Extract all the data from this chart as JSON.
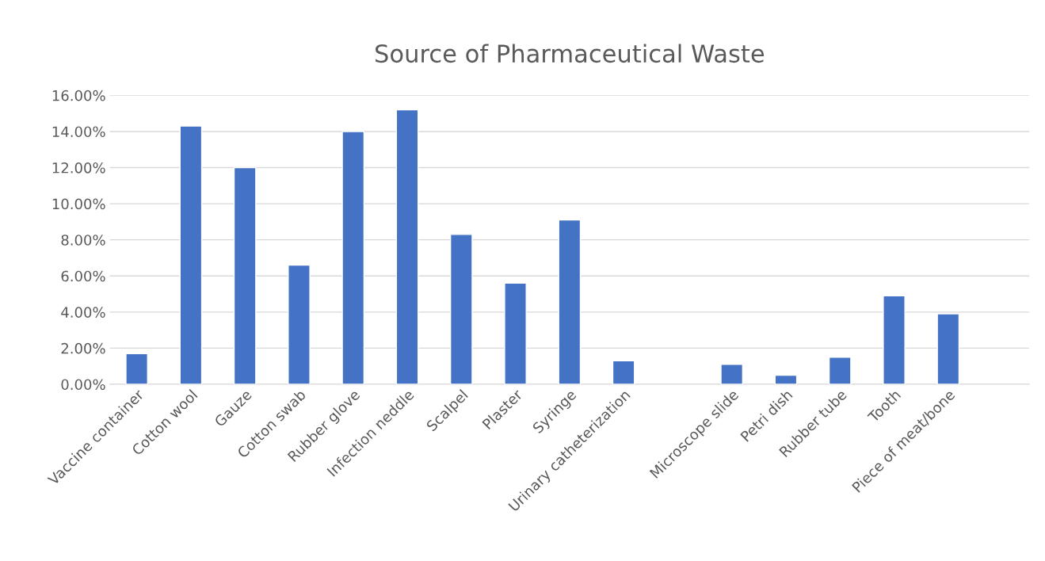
{
  "chart_data": {
    "type": "bar",
    "title": "Source of Pharmaceutical Waste",
    "categories": [
      "Vaccine container",
      "Cotton wool",
      "Gauze",
      "Cotton swab",
      "Rubber glove",
      "Infection neddle",
      "Scalpel",
      "Plaster",
      "Syringe",
      "Urinary catheterization",
      null,
      "Microscope slide",
      "Petri dish",
      "Rubber tube",
      "Tooth",
      "Piece of meat/bone",
      null
    ],
    "values": [
      1.7,
      14.3,
      12.0,
      6.6,
      14.0,
      15.2,
      8.3,
      5.6,
      9.1,
      1.3,
      null,
      1.1,
      0.5,
      1.5,
      4.9,
      3.9,
      null
    ],
    "color": "#4472c4",
    "ylim": [
      0,
      16
    ],
    "yticks": [
      {
        "value": 0,
        "label": "0.00%"
      },
      {
        "value": 2,
        "label": "2.00%"
      },
      {
        "value": 4,
        "label": "4.00%"
      },
      {
        "value": 6,
        "label": "6.00%"
      },
      {
        "value": 8,
        "label": "8.00%"
      },
      {
        "value": 10,
        "label": "10.00%"
      },
      {
        "value": 12,
        "label": "12.00%"
      },
      {
        "value": 14,
        "label": "14.00%"
      },
      {
        "value": 16,
        "label": "16.00%"
      }
    ],
    "grid": "y",
    "legend": false
  }
}
